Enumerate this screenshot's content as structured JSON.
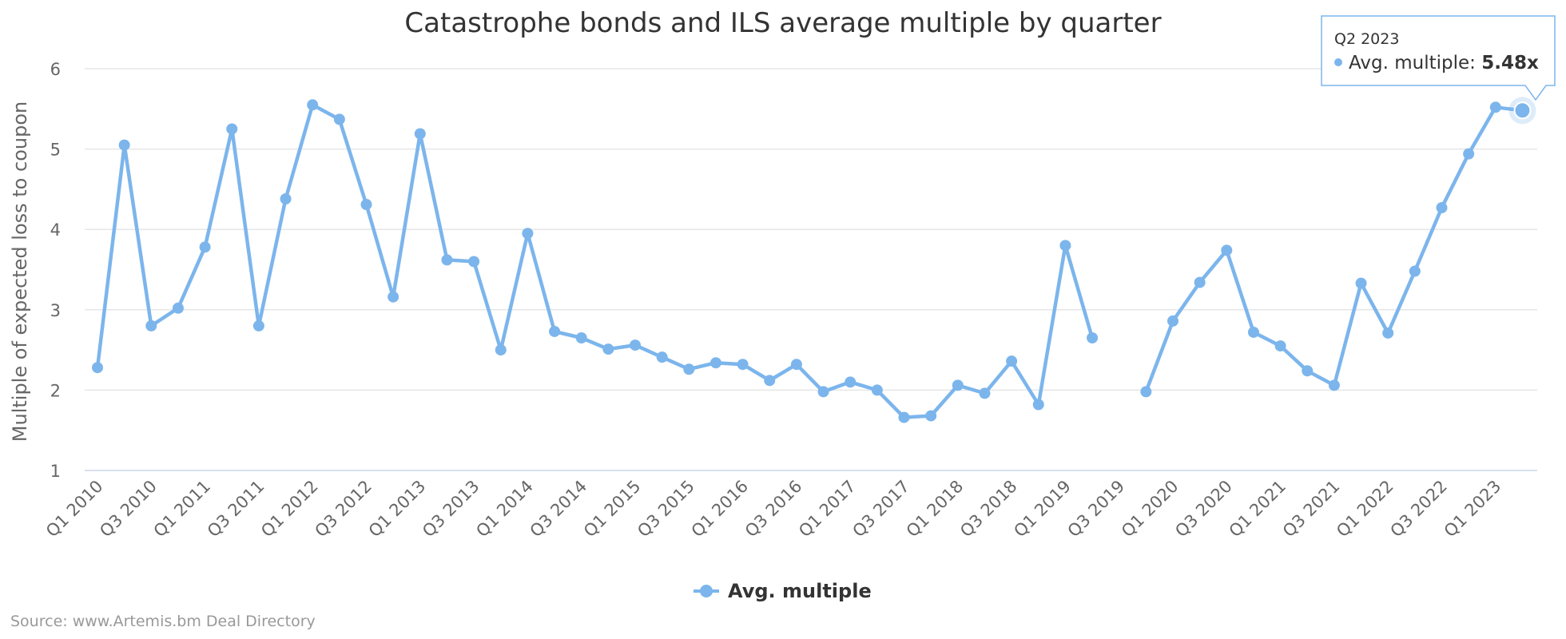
{
  "chart_data": {
    "type": "line",
    "title": "Catastrophe bonds and ILS average multiple by quarter",
    "ylabel": "Multiple of expected loss to coupon",
    "xlabel": "",
    "ylim": [
      1,
      6
    ],
    "yticks": [
      1,
      2,
      3,
      4,
      5,
      6
    ],
    "grid": true,
    "legend_position": "bottom-center",
    "categories": [
      "Q1 2010",
      "Q2 2010",
      "Q3 2010",
      "Q4 2010",
      "Q1 2011",
      "Q2 2011",
      "Q3 2011",
      "Q4 2011",
      "Q1 2012",
      "Q2 2012",
      "Q3 2012",
      "Q4 2012",
      "Q1 2013",
      "Q2 2013",
      "Q3 2013",
      "Q4 2013",
      "Q1 2014",
      "Q2 2014",
      "Q3 2014",
      "Q4 2014",
      "Q1 2015",
      "Q2 2015",
      "Q3 2015",
      "Q4 2015",
      "Q1 2016",
      "Q2 2016",
      "Q3 2016",
      "Q4 2016",
      "Q1 2017",
      "Q2 2017",
      "Q3 2017",
      "Q4 2017",
      "Q1 2018",
      "Q2 2018",
      "Q3 2018",
      "Q4 2018",
      "Q1 2019",
      "Q2 2019",
      "Q3 2019",
      "Q4 2019",
      "Q1 2020",
      "Q2 2020",
      "Q3 2020",
      "Q4 2020",
      "Q1 2021",
      "Q2 2021",
      "Q3 2021",
      "Q4 2021",
      "Q1 2022",
      "Q2 2022",
      "Q3 2022",
      "Q4 2022",
      "Q1 2023",
      "Q2 2023"
    ],
    "tick_labels": [
      "Q1 2010",
      "Q3 2010",
      "Q1 2011",
      "Q3 2011",
      "Q1 2012",
      "Q3 2012",
      "Q1 2013",
      "Q3 2013",
      "Q1 2014",
      "Q3 2014",
      "Q1 2015",
      "Q3 2015",
      "Q1 2016",
      "Q3 2016",
      "Q1 2017",
      "Q3 2017",
      "Q1 2018",
      "Q3 2018",
      "Q1 2019",
      "Q3 2019",
      "Q1 2020",
      "Q3 2020",
      "Q1 2021",
      "Q3 2021",
      "Q1 2022",
      "Q3 2022",
      "Q1 2023"
    ],
    "series": [
      {
        "name": "Avg. multiple",
        "color": "#7cb5ec",
        "values": [
          2.28,
          5.05,
          2.8,
          3.02,
          3.78,
          5.25,
          2.8,
          4.38,
          5.55,
          5.37,
          4.31,
          3.16,
          5.19,
          3.62,
          3.6,
          2.5,
          3.95,
          2.73,
          2.65,
          2.51,
          2.56,
          2.41,
          2.26,
          2.34,
          2.32,
          2.12,
          2.32,
          1.98,
          2.1,
          2.0,
          1.66,
          1.68,
          2.06,
          1.96,
          2.36,
          1.82,
          3.8,
          2.65,
          null,
          1.98,
          2.86,
          3.34,
          3.74,
          2.72,
          2.55,
          2.24,
          2.06,
          3.33,
          2.71,
          3.48,
          4.27,
          4.94,
          5.52,
          5.48
        ]
      }
    ]
  },
  "tooltip": {
    "header": "Q2 2023",
    "series_label": "Avg. multiple: ",
    "value_text": "5.48x",
    "point_index": 53
  },
  "legend": {
    "label": "Avg. multiple"
  },
  "credits": "Source: www.Artemis.bm Deal Directory",
  "colors": {
    "series": "#7cb5ec",
    "grid": "#e6e6e6",
    "axis": "#ccd6eb"
  }
}
